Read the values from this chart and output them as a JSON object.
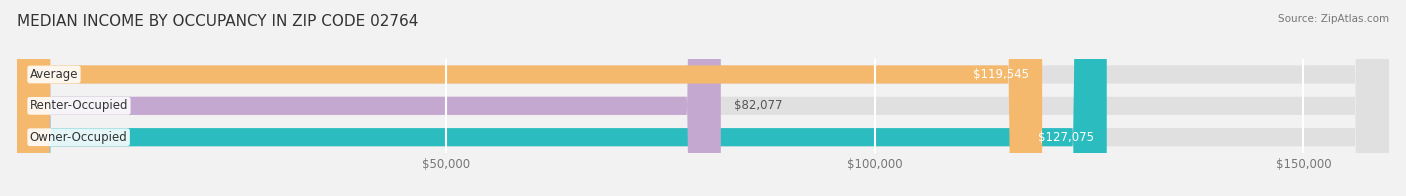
{
  "title": "MEDIAN INCOME BY OCCUPANCY IN ZIP CODE 02764",
  "source": "Source: ZipAtlas.com",
  "categories": [
    "Owner-Occupied",
    "Renter-Occupied",
    "Average"
  ],
  "values": [
    127075,
    82077,
    119545
  ],
  "bar_colors": [
    "#2bbcbf",
    "#c4a8d0",
    "#f5b96e"
  ],
  "bar_labels": [
    "$127,075",
    "$82,077",
    "$119,545"
  ],
  "label_inside": [
    true,
    false,
    true
  ],
  "xlim": [
    0,
    160000
  ],
  "xticks": [
    50000,
    100000,
    150000
  ],
  "xtick_labels": [
    "$50,000",
    "$100,000",
    "$150,000"
  ],
  "background_color": "#f2f2f2",
  "bar_background_color": "#e0e0e0",
  "title_fontsize": 11,
  "label_fontsize": 8.5,
  "bar_height": 0.58,
  "grid_color": "#ffffff"
}
